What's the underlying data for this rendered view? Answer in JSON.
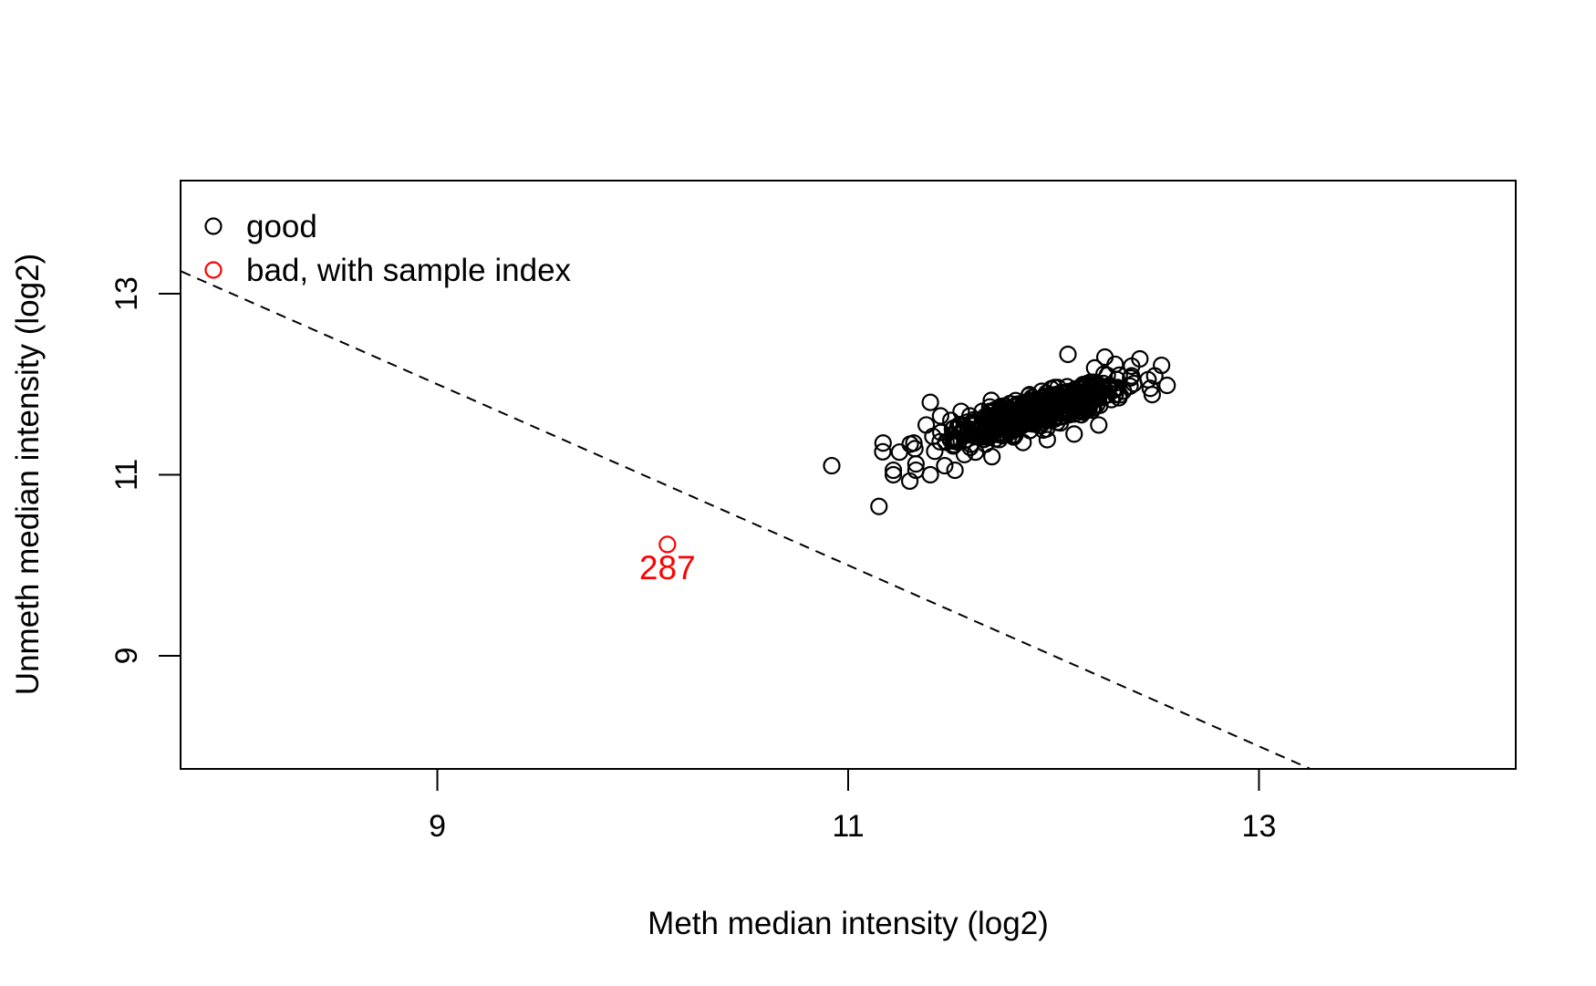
{
  "chart_data": {
    "type": "scatter",
    "title": "",
    "xlabel": "Meth median intensity (log2)",
    "ylabel": "Unmeth median intensity (log2)",
    "xlim": [
      7.75,
      14.25
    ],
    "ylim": [
      7.75,
      14.25
    ],
    "xticks": [
      9,
      11,
      13
    ],
    "yticks": [
      9,
      11,
      13
    ],
    "xtick_labels": [
      "9",
      "11",
      "13"
    ],
    "ytick_labels": [
      "9",
      "11",
      "13"
    ],
    "grid": false,
    "legend": {
      "position": "top-left",
      "entries": [
        {
          "label": "good",
          "color": "#000000",
          "marker": "open-circle"
        },
        {
          "label": "bad, with sample index",
          "color": "#ff0000",
          "marker": "open-circle"
        }
      ]
    },
    "threshold_line": {
      "style": "dashed",
      "color": "#000000",
      "slope": -1,
      "intercept": 21
    },
    "series": [
      {
        "name": "good",
        "color": "#000000",
        "cluster": {
          "center": [
            11.92,
            11.7
          ],
          "major_sd": 0.25,
          "minor_sd": 0.07,
          "angle_deg": 36,
          "count": 620
        },
        "points": [
          [
            10.92,
            11.1
          ],
          [
            11.15,
            10.65
          ],
          [
            11.17,
            11.35
          ],
          [
            11.22,
            11.05
          ],
          [
            11.22,
            11.0
          ],
          [
            11.25,
            11.25
          ],
          [
            11.3,
            10.93
          ],
          [
            11.32,
            11.35
          ],
          [
            11.33,
            11.12
          ],
          [
            11.33,
            11.05
          ],
          [
            11.4,
            11.8
          ],
          [
            11.38,
            11.55
          ],
          [
            11.4,
            11.0
          ],
          [
            11.45,
            11.65
          ],
          [
            11.47,
            11.1
          ],
          [
            11.5,
            11.6
          ],
          [
            11.52,
            11.05
          ],
          [
            11.55,
            11.7
          ],
          [
            12.42,
            12.28
          ],
          [
            12.46,
            12.05
          ],
          [
            12.38,
            12.2
          ],
          [
            12.3,
            12.22
          ],
          [
            12.25,
            12.3
          ],
          [
            12.07,
            12.33
          ],
          [
            12.22,
            11.55
          ],
          [
            12.1,
            11.45
          ],
          [
            11.62,
            11.25
          ],
          [
            11.7,
            11.2
          ],
          [
            12.32,
            12.1
          ],
          [
            12.2,
            12.18
          ]
        ]
      },
      {
        "name": "bad, with sample index",
        "color": "#ff0000",
        "points": [
          [
            10.12,
            10.23
          ]
        ],
        "labels": [
          "287"
        ]
      }
    ]
  }
}
